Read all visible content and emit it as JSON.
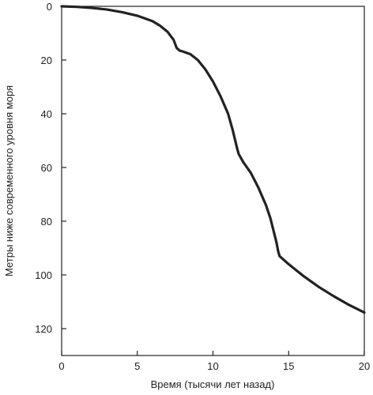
{
  "chart_data": {
    "type": "line",
    "title": "",
    "xlabel": "Время (тысячи лет назад)",
    "ylabel": "Метры ниже современного уровня моря",
    "xlim": [
      0,
      20
    ],
    "ylim": [
      0,
      130
    ],
    "y_inverted": true,
    "x_ticks": [
      0,
      5,
      10,
      15,
      20
    ],
    "y_ticks": [
      0,
      20,
      40,
      60,
      80,
      100,
      120
    ],
    "grid": false,
    "legend": "none",
    "line_color": "#222222",
    "series": [
      {
        "x": [
          0,
          1,
          2,
          3,
          4,
          5,
          6,
          6.5,
          7,
          7.4,
          7.6,
          7.8,
          8,
          8.5,
          9,
          9.5,
          10,
          10.5,
          11,
          11.3,
          11.6,
          11.7,
          11.8,
          12,
          12.5,
          13,
          13.5,
          13.8,
          14,
          14.2,
          14.3,
          14.4,
          15,
          16,
          17,
          18,
          19,
          20
        ],
        "y": [
          0,
          0.2,
          0.6,
          1.2,
          2.2,
          3.5,
          5.5,
          7.2,
          9.5,
          12.5,
          15.5,
          16.5,
          16.8,
          17.8,
          20,
          23.5,
          28,
          33.5,
          40,
          46,
          53,
          55,
          56,
          58,
          62,
          67.5,
          74,
          79,
          83.5,
          88,
          91,
          93,
          96,
          100.5,
          104.5,
          108,
          111.2,
          114
        ]
      }
    ]
  }
}
